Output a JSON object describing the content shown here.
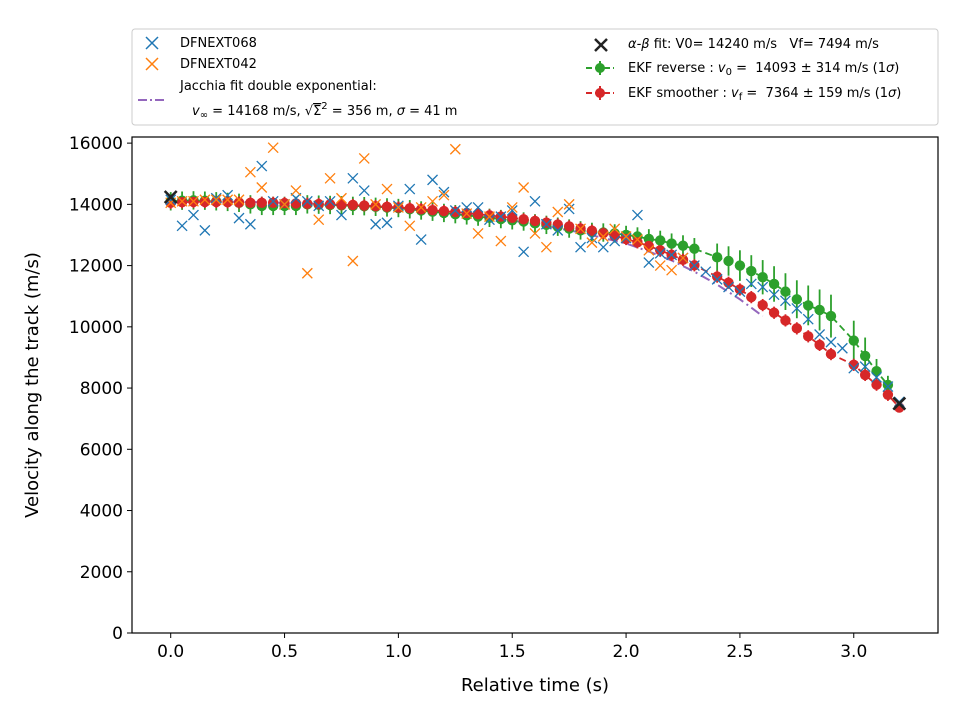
{
  "chart_data": {
    "type": "scatter",
    "xlabel": "Relative time (s)",
    "ylabel": "Velocity along the track (m/s)",
    "xlim": [
      -0.17,
      3.37
    ],
    "ylim": [
      0,
      16200
    ],
    "x_ticks": [
      0.0,
      0.5,
      1.0,
      1.5,
      2.0,
      2.5,
      3.0
    ],
    "x_tick_labels": [
      "0.0",
      "0.5",
      "1.0",
      "1.5",
      "2.0",
      "2.5",
      "3.0"
    ],
    "y_ticks": [
      0,
      2000,
      4000,
      6000,
      8000,
      10000,
      12000,
      14000,
      16000
    ],
    "y_tick_labels": [
      "0",
      "2000",
      "4000",
      "6000",
      "8000",
      "10000",
      "12000",
      "14000",
      "16000"
    ],
    "grid": false,
    "legend_position": "above",
    "series": [
      {
        "name": "DFNEXT068",
        "marker": "x",
        "color": "#1f77b4",
        "x": [
          0.0,
          0.05,
          0.1,
          0.15,
          0.2,
          0.25,
          0.3,
          0.35,
          0.4,
          0.45,
          0.5,
          0.55,
          0.6,
          0.65,
          0.7,
          0.75,
          0.8,
          0.85,
          0.9,
          0.95,
          1.0,
          1.05,
          1.1,
          1.15,
          1.2,
          1.25,
          1.3,
          1.35,
          1.4,
          1.45,
          1.5,
          1.55,
          1.6,
          1.65,
          1.7,
          1.75,
          1.8,
          1.85,
          1.9,
          1.95,
          2.0,
          2.05,
          2.1,
          2.15,
          2.2,
          2.25,
          2.3,
          2.35,
          2.4,
          2.45,
          2.5,
          2.55,
          2.6,
          2.65,
          2.7,
          2.75,
          2.8,
          2.85,
          2.9,
          2.95,
          3.0,
          3.05,
          3.1,
          3.15,
          3.2
        ],
        "y": [
          14150,
          13300,
          13650,
          13150,
          14200,
          14300,
          13550,
          13350,
          15250,
          14100,
          14000,
          14200,
          14100,
          13950,
          14100,
          13650,
          14850,
          14450,
          13350,
          13400,
          13950,
          14500,
          12850,
          14800,
          14400,
          13800,
          13900,
          13900,
          13500,
          13600,
          13800,
          12450,
          14100,
          13350,
          13150,
          13850,
          12600,
          12900,
          12600,
          12800,
          12900,
          13650,
          12100,
          12400,
          12350,
          12250,
          12000,
          11800,
          11550,
          11300,
          11150,
          11400,
          11300,
          11050,
          10850,
          10600,
          10250,
          9750,
          9500,
          9300,
          8650,
          8700,
          8350,
          8050,
          7550
        ]
      },
      {
        "name": "DFNEXT042",
        "marker": "x",
        "color": "#ff7f0e",
        "x": [
          0.0,
          0.05,
          0.1,
          0.15,
          0.2,
          0.25,
          0.3,
          0.35,
          0.4,
          0.45,
          0.5,
          0.55,
          0.6,
          0.65,
          0.7,
          0.75,
          0.8,
          0.85,
          0.9,
          0.95,
          1.0,
          1.05,
          1.1,
          1.15,
          1.2,
          1.25,
          1.3,
          1.35,
          1.4,
          1.45,
          1.5,
          1.55,
          1.6,
          1.65,
          1.7,
          1.75,
          1.8,
          1.85,
          1.9,
          1.95,
          2.0,
          2.05,
          2.1,
          2.15,
          2.2,
          2.25
        ],
        "y": [
          14050,
          14100,
          14100,
          14150,
          14150,
          14150,
          14150,
          15050,
          14550,
          15850,
          14000,
          14450,
          11750,
          13500,
          14850,
          14200,
          12150,
          15500,
          14000,
          14500,
          13900,
          13300,
          13900,
          14100,
          14300,
          15800,
          13700,
          13050,
          13600,
          12800,
          13900,
          14550,
          13050,
          12600,
          13750,
          14000,
          13200,
          12750,
          12950,
          13200,
          12950,
          12850,
          12500,
          12000,
          11850,
          12250
        ]
      },
      {
        "name": "Jacchia fit double exponential:",
        "name_line2_prefix": "v",
        "name_line2_sub": "∞",
        "name_line2_text1": " = 14168 m/s, ",
        "name_line2_text2": " = 356 m, ",
        "name_line2_text3": " = 41 m",
        "name_line2_sqrt_body": "Σ",
        "name_line2_sqrt_sup": "2",
        "name_line2_sigma": "σ",
        "line_style": "dashdot",
        "color": "#9467bd",
        "x": [
          0.0,
          0.2,
          0.4,
          0.6,
          0.8,
          1.0,
          1.2,
          1.4,
          1.6,
          1.8,
          2.0,
          2.1,
          2.2,
          2.3,
          2.4,
          2.5,
          2.6
        ],
        "y": [
          14100,
          14090,
          14070,
          14030,
          13960,
          13870,
          13750,
          13580,
          13360,
          13080,
          12720,
          12460,
          12170,
          11800,
          11380,
          10900,
          10350
        ]
      },
      {
        "name_prefix": "α-β",
        "name": " fit: V0= 14240 m/s   Vf= 7494 m/s",
        "marker": "x",
        "color": "#222222",
        "x": [
          0.0,
          3.2
        ],
        "y": [
          14240,
          7494
        ]
      },
      {
        "name": "EKF reverse : ",
        "name_math": "v",
        "name_math_sub": "0",
        "name_rest": " =  14093 ± 314 m/s (1",
        "name_sigma": "σ",
        "name_close": ")",
        "marker": "o",
        "line_style": "dashed",
        "color": "#2ca02c",
        "x": [
          0.0,
          0.05,
          0.1,
          0.15,
          0.2,
          0.25,
          0.3,
          0.35,
          0.4,
          0.45,
          0.5,
          0.55,
          0.6,
          0.65,
          0.7,
          0.75,
          0.8,
          0.85,
          0.9,
          0.95,
          1.0,
          1.05,
          1.1,
          1.15,
          1.2,
          1.25,
          1.3,
          1.35,
          1.4,
          1.45,
          1.5,
          1.55,
          1.6,
          1.65,
          1.7,
          1.75,
          1.8,
          1.85,
          1.9,
          1.95,
          2.0,
          2.05,
          2.1,
          2.15,
          2.2,
          2.25,
          2.3,
          2.4,
          2.45,
          2.5,
          2.55,
          2.6,
          2.65,
          2.7,
          2.75,
          2.8,
          2.85,
          2.9,
          3.0,
          3.05,
          3.1,
          3.15
        ],
        "y": [
          14100,
          14120,
          14130,
          14120,
          14100,
          14080,
          14050,
          14000,
          13950,
          13950,
          13950,
          13950,
          14000,
          13990,
          13980,
          13970,
          13950,
          13940,
          13920,
          13900,
          13880,
          13840,
          13800,
          13760,
          13720,
          13680,
          13640,
          13600,
          13560,
          13520,
          13480,
          13440,
          13380,
          13330,
          13270,
          13210,
          13150,
          13100,
          13080,
          13050,
          13000,
          12950,
          12870,
          12820,
          12720,
          12650,
          12550,
          12270,
          12150,
          12000,
          11820,
          11620,
          11400,
          11150,
          10900,
          10700,
          10550,
          10350,
          9550,
          9050,
          8550,
          8100
        ],
        "err": [
          300,
          300,
          300,
          300,
          300,
          300,
          300,
          300,
          300,
          300,
          300,
          300,
          300,
          300,
          300,
          300,
          300,
          300,
          300,
          300,
          300,
          300,
          300,
          300,
          300,
          300,
          300,
          300,
          300,
          300,
          300,
          300,
          300,
          300,
          300,
          300,
          300,
          300,
          300,
          300,
          300,
          300,
          320,
          320,
          330,
          340,
          350,
          450,
          480,
          500,
          520,
          560,
          580,
          600,
          620,
          650,
          670,
          700,
          650,
          600,
          400,
          300
        ]
      },
      {
        "name": "EKF smoother : ",
        "name_math": "v",
        "name_math_sub": "f",
        "name_rest": " =  7364 ± 159 m/s (1",
        "name_sigma": "σ",
        "name_close": ")",
        "marker": "o",
        "line_style": "dashed",
        "color": "#d62728",
        "x": [
          0.0,
          0.05,
          0.1,
          0.15,
          0.2,
          0.25,
          0.3,
          0.35,
          0.4,
          0.45,
          0.5,
          0.55,
          0.6,
          0.65,
          0.7,
          0.75,
          0.8,
          0.85,
          0.9,
          0.95,
          1.0,
          1.05,
          1.1,
          1.15,
          1.2,
          1.25,
          1.3,
          1.35,
          1.4,
          1.45,
          1.5,
          1.55,
          1.6,
          1.65,
          1.7,
          1.75,
          1.8,
          1.85,
          1.9,
          1.95,
          2.0,
          2.05,
          2.1,
          2.15,
          2.2,
          2.25,
          2.3,
          2.4,
          2.45,
          2.5,
          2.55,
          2.6,
          2.65,
          2.7,
          2.75,
          2.8,
          2.85,
          2.9,
          3.0,
          3.05,
          3.1,
          3.15,
          3.2
        ],
        "y": [
          14050,
          14070,
          14080,
          14080,
          14080,
          14070,
          14060,
          14050,
          14050,
          14050,
          14040,
          14030,
          14020,
          14010,
          14000,
          13990,
          13980,
          13960,
          13940,
          13920,
          13900,
          13870,
          13840,
          13810,
          13780,
          13750,
          13720,
          13680,
          13640,
          13600,
          13560,
          13510,
          13460,
          13400,
          13340,
          13280,
          13210,
          13140,
          13060,
          12970,
          12870,
          12760,
          12640,
          12500,
          12350,
          12190,
          12010,
          11640,
          11440,
          11220,
          10970,
          10710,
          10460,
          10210,
          9950,
          9690,
          9410,
          9110,
          8760,
          8430,
          8110,
          7780,
          7364
        ],
        "err": [
          200,
          200,
          200,
          200,
          200,
          200,
          200,
          200,
          200,
          200,
          200,
          200,
          200,
          200,
          200,
          200,
          200,
          200,
          200,
          200,
          200,
          200,
          200,
          200,
          200,
          200,
          200,
          200,
          200,
          200,
          200,
          200,
          200,
          200,
          200,
          200,
          200,
          200,
          200,
          200,
          200,
          200,
          200,
          200,
          200,
          200,
          200,
          200,
          200,
          200,
          200,
          200,
          200,
          200,
          200,
          200,
          200,
          200,
          200,
          200,
          200,
          200,
          159
        ]
      }
    ]
  }
}
